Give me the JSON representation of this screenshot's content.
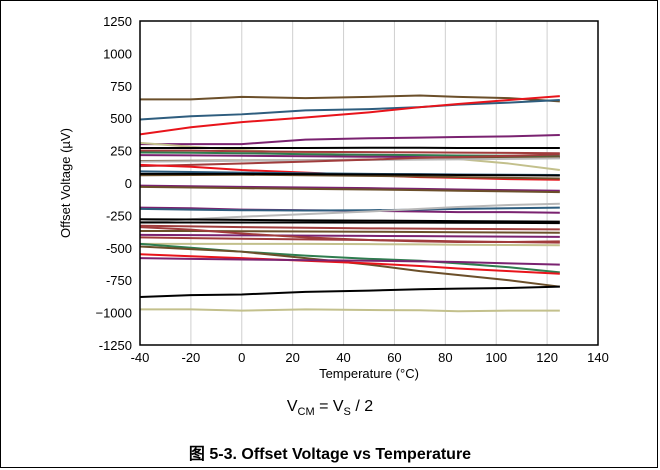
{
  "chart_data": {
    "type": "line",
    "title": "",
    "xlabel": "Temperature (°C)",
    "ylabel": "Offset Voltage (µV)",
    "xlim": [
      -40,
      140
    ],
    "ylim": [
      -1250,
      1250
    ],
    "x_ticks": [
      -40,
      -20,
      0,
      20,
      40,
      60,
      80,
      100,
      120,
      140
    ],
    "y_ticks": [
      1250,
      1000,
      750,
      500,
      250,
      0,
      -250,
      -500,
      -750,
      -1000,
      -1250
    ],
    "x_tick_labels": [
      "-40",
      "-20",
      "0",
      "20",
      "40",
      "60",
      "80",
      "100",
      "120",
      "140"
    ],
    "y_tick_labels": [
      "1250",
      "1000",
      "750",
      "500",
      "250",
      "0",
      "-250",
      "-500",
      "-750",
      "−1000",
      "-1250"
    ],
    "grid": "vertical",
    "x": [
      -40,
      -20,
      0,
      25,
      50,
      70,
      85,
      105,
      125
    ],
    "series": [
      {
        "color": "#6b4f2a",
        "values": [
          645,
          645,
          665,
          655,
          665,
          675,
          665,
          655,
          630
        ]
      },
      {
        "color": "#2e5d7e",
        "values": [
          490,
          515,
          530,
          560,
          570,
          585,
          605,
          620,
          640
        ]
      },
      {
        "color": "#e8141b",
        "values": [
          375,
          430,
          470,
          505,
          545,
          585,
          610,
          640,
          670
        ]
      },
      {
        "color": "#7a2270",
        "values": [
          300,
          300,
          300,
          335,
          345,
          350,
          355,
          360,
          370
        ]
      },
      {
        "color": "#c3c08c",
        "values": [
          310,
          280,
          255,
          230,
          215,
          200,
          185,
          150,
          100
        ]
      },
      {
        "color": "#000000",
        "values": [
          270,
          270,
          270,
          270,
          272,
          272,
          270,
          270,
          270
        ]
      },
      {
        "color": "#a03c3c",
        "values": [
          250,
          250,
          245,
          240,
          238,
          236,
          234,
          232,
          230
        ]
      },
      {
        "color": "#2e7d4f",
        "values": [
          235,
          233,
          230,
          222,
          218,
          215,
          212,
          210,
          205
        ]
      },
      {
        "color": "#7a2270",
        "values": [
          215,
          213,
          210,
          206,
          203,
          200,
          198,
          196,
          195
        ]
      },
      {
        "color": "#6b4f2a",
        "values": [
          170,
          172,
          174,
          176,
          180,
          185,
          190,
          195,
          200
        ]
      },
      {
        "color": "#b8b8b8",
        "values": [
          165,
          168,
          172,
          175,
          178,
          180,
          182,
          186,
          190
        ]
      },
      {
        "color": "#a03c3c",
        "values": [
          130,
          140,
          150,
          165,
          180,
          195,
          200,
          210,
          220
        ]
      },
      {
        "color": "#e8141b",
        "values": [
          140,
          125,
          100,
          80,
          60,
          45,
          40,
          30,
          25
        ]
      },
      {
        "color": "#2e5d7e",
        "values": [
          90,
          85,
          80,
          75,
          70,
          68,
          66,
          64,
          62
        ]
      },
      {
        "color": "#6b4f2a",
        "values": [
          60,
          62,
          64,
          60,
          55,
          50,
          45,
          40,
          35
        ]
      },
      {
        "color": "#000000",
        "values": [
          70,
          70,
          70,
          68,
          66,
          64,
          62,
          60,
          58
        ]
      },
      {
        "color": "#7a2270",
        "values": [
          -20,
          -25,
          -30,
          -35,
          -40,
          -45,
          -50,
          -55,
          -60
        ]
      },
      {
        "color": "#6b4f2a",
        "values": [
          -30,
          -35,
          -40,
          -45,
          -50,
          -55,
          -60,
          -65,
          -70
        ]
      },
      {
        "color": "#7a2270",
        "values": [
          -190,
          -195,
          -205,
          -210,
          -215,
          -220,
          -225,
          -225,
          -230
        ]
      },
      {
        "color": "#2e5d7e",
        "values": [
          -200,
          -205,
          -210,
          -212,
          -210,
          -205,
          -200,
          -195,
          -190
        ]
      },
      {
        "color": "#b8b8b8",
        "values": [
          -300,
          -280,
          -260,
          -240,
          -220,
          -200,
          -185,
          -170,
          -160
        ]
      },
      {
        "color": "#000000",
        "values": [
          -280,
          -282,
          -285,
          -288,
          -290,
          -292,
          -294,
          -296,
          -298
        ]
      },
      {
        "color": "#000000",
        "values": [
          -305,
          -305,
          -305,
          -305,
          -306,
          -306,
          -307,
          -308,
          -310
        ]
      },
      {
        "color": "#a03c3c",
        "values": [
          -330,
          -335,
          -340,
          -345,
          -350,
          -352,
          -354,
          -356,
          -358
        ]
      },
      {
        "color": "#6b4f2a",
        "values": [
          -370,
          -370,
          -372,
          -374,
          -376,
          -378,
          -380,
          -382,
          -384
        ]
      },
      {
        "color": "#7a2270",
        "values": [
          -400,
          -402,
          -404,
          -406,
          -408,
          -410,
          -412,
          -414,
          -416
        ]
      },
      {
        "color": "#a03c3c",
        "values": [
          -420,
          -425,
          -430,
          -435,
          -440,
          -445,
          -450,
          -455,
          -460
        ]
      },
      {
        "color": "#c3c08c",
        "values": [
          -470,
          -470,
          -470,
          -470,
          -472,
          -474,
          -476,
          -478,
          -480
        ]
      },
      {
        "color": "#a03c3c",
        "values": [
          -340,
          -360,
          -390,
          -420,
          -440,
          -450,
          -455,
          -455,
          -450
        ]
      },
      {
        "color": "#2e7d4f",
        "values": [
          -470,
          -500,
          -530,
          -560,
          -585,
          -600,
          -620,
          -650,
          -690
        ]
      },
      {
        "color": "#6b4f2a",
        "values": [
          -490,
          -510,
          -530,
          -580,
          -630,
          -680,
          -710,
          -750,
          -800
        ]
      },
      {
        "color": "#e8141b",
        "values": [
          -550,
          -565,
          -580,
          -600,
          -620,
          -640,
          -660,
          -680,
          -700
        ]
      },
      {
        "color": "#7a2270",
        "values": [
          -580,
          -585,
          -590,
          -595,
          -600,
          -605,
          -610,
          -620,
          -630
        ]
      },
      {
        "color": "#000000",
        "values": [
          -880,
          -865,
          -860,
          -840,
          -830,
          -820,
          -815,
          -810,
          -800
        ]
      },
      {
        "color": "#c3c08c",
        "values": [
          -975,
          -975,
          -985,
          -975,
          -980,
          -982,
          -990,
          -985,
          -985
        ]
      }
    ]
  },
  "caption": {
    "condition_main": "V",
    "condition_sub1": "CM",
    "condition_mid": " = V",
    "condition_sub2": "S",
    "condition_end": " / 2",
    "figure": "图 5-3. Offset Voltage vs Temperature"
  }
}
